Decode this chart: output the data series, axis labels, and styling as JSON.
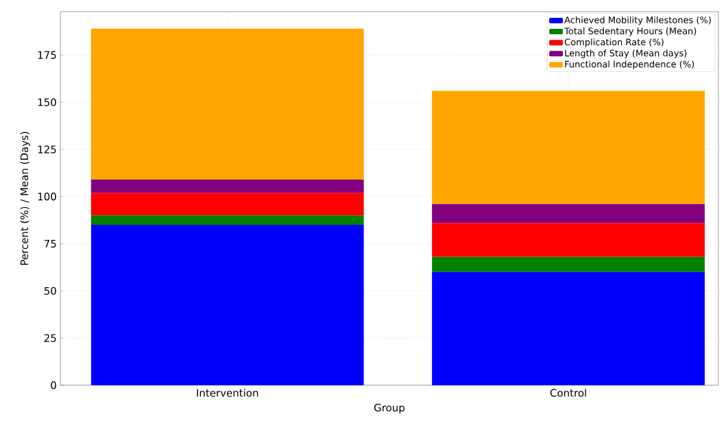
{
  "chart_data": {
    "type": "bar",
    "stacked": true,
    "xlabel": "Group",
    "ylabel": "Percent (%) / Mean (Days)",
    "categories": [
      "Intervention",
      "Control"
    ],
    "series": [
      {
        "name": "Achieved Mobility Milestones (%)",
        "color": "#0000ff",
        "values": [
          85,
          60
        ]
      },
      {
        "name": "Total Sedentary Hours (Mean)",
        "color": "#008000",
        "values": [
          5,
          8
        ]
      },
      {
        "name": "Complication Rate (%)",
        "color": "#ff0000",
        "values": [
          12,
          18
        ]
      },
      {
        "name": "Length of Stay (Mean days)",
        "color": "#800080",
        "values": [
          7,
          10
        ]
      },
      {
        "name": "Functional Independence (%)",
        "color": "#ffa500",
        "values": [
          80,
          60
        ]
      }
    ],
    "ylim": [
      0,
      198
    ],
    "yticks": [
      0,
      25,
      50,
      75,
      100,
      125,
      150,
      175
    ],
    "grid": true,
    "legend": "top right"
  }
}
